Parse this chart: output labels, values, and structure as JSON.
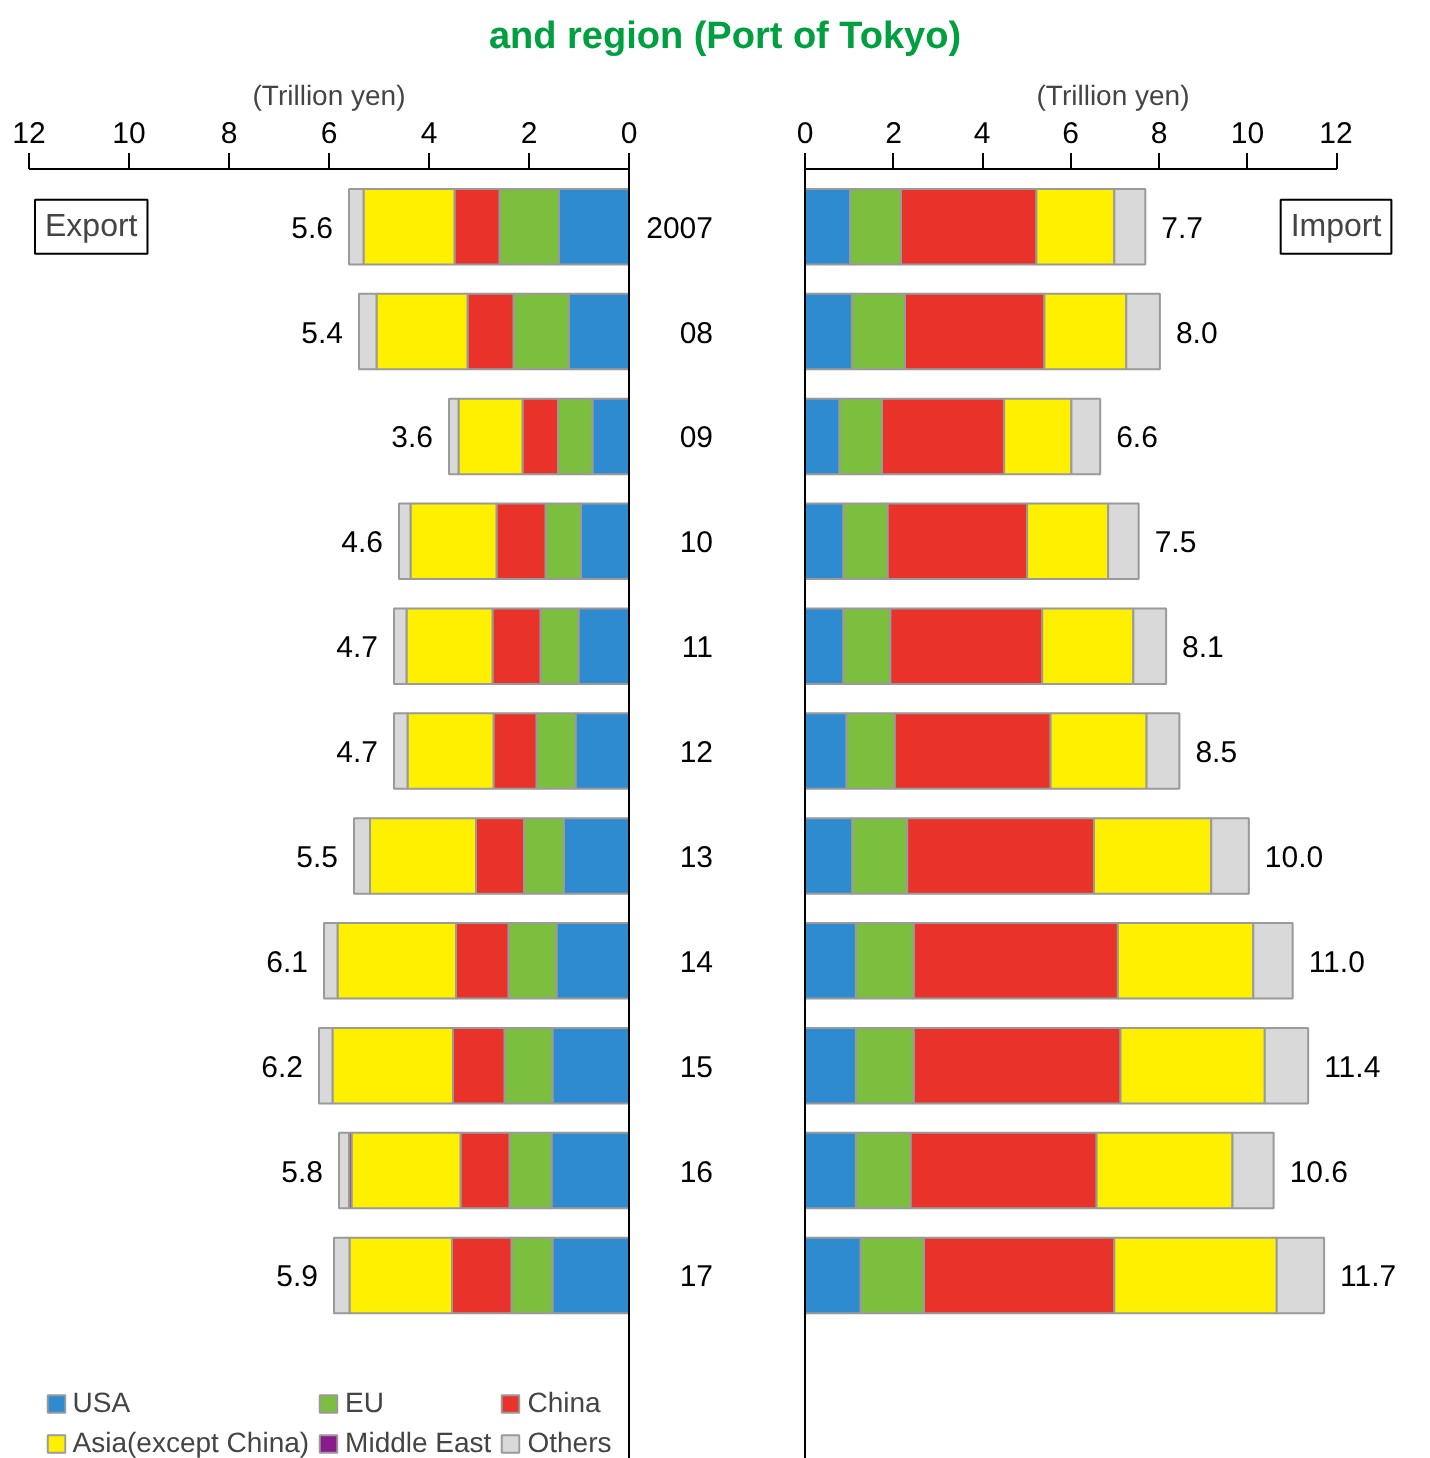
{
  "chart_data": [
    {
      "type": "bar",
      "orientation": "horizontal",
      "stacked": true,
      "title": "and region (Port of Tokyo)",
      "xlabel": "(Trillion yen)",
      "annotations": [
        "Export"
      ],
      "categories": [
        "2007",
        "08",
        "09",
        "10",
        "11",
        "12",
        "13",
        "14",
        "15",
        "16",
        "17"
      ],
      "xlim": [
        12,
        0
      ],
      "xticks": [
        0,
        2,
        4,
        6,
        8,
        10,
        12
      ],
      "tick_labels": "x",
      "legend": "bottom",
      "grid": false,
      "totals": [
        "5.6",
        "5.4",
        "3.6",
        "4.6",
        "4.7",
        "4.7",
        "5.5",
        "6.1",
        "6.2",
        "5.8",
        "5.9"
      ],
      "series": [
        {
          "name": "USA",
          "color": "#2e8bd0",
          "values": [
            1.4,
            1.2,
            0.73,
            0.96,
            1.01,
            1.07,
            1.3,
            1.45,
            1.53,
            1.55,
            1.53
          ]
        },
        {
          "name": "EU",
          "color": "#7cbf3f",
          "values": [
            1.19,
            1.11,
            0.69,
            0.71,
            0.76,
            0.78,
            0.8,
            0.96,
            0.96,
            0.84,
            0.82
          ]
        },
        {
          "name": "China",
          "color": "#e8322a",
          "values": [
            0.9,
            0.92,
            0.71,
            0.98,
            0.96,
            0.86,
            0.96,
            1.05,
            1.03,
            0.98,
            1.19
          ]
        },
        {
          "name": "Asia(except China)",
          "color": "#fff000",
          "values": [
            1.82,
            1.82,
            1.28,
            1.72,
            1.72,
            1.72,
            2.12,
            2.37,
            2.41,
            2.18,
            2.05
          ]
        },
        {
          "name": "Middle East",
          "color": "#8b1a8b",
          "values": [
            null,
            null,
            null,
            null,
            null,
            null,
            null,
            null,
            null,
            0.05,
            null
          ]
        },
        {
          "name": "Others",
          "color": "#d9d9d9",
          "values": [
            0.29,
            0.35,
            0.19,
            0.23,
            0.25,
            0.27,
            0.32,
            0.27,
            0.27,
            0.2,
            0.31
          ]
        }
      ]
    },
    {
      "type": "bar",
      "orientation": "horizontal",
      "stacked": true,
      "xlabel": "(Trillion yen)",
      "annotations": [
        "Import"
      ],
      "categories": [
        "2007",
        "08",
        "09",
        "10",
        "11",
        "12",
        "13",
        "14",
        "15",
        "16",
        "17"
      ],
      "xlim": [
        0,
        12
      ],
      "xticks": [
        0,
        2,
        4,
        6,
        8,
        10,
        12
      ],
      "grid": false,
      "totals": [
        "7.7",
        "8.0",
        "6.6",
        "7.5",
        "8.1",
        "8.5",
        "10.0",
        "11.0",
        "11.4",
        "10.6",
        "11.7"
      ],
      "series": [
        {
          "color": "#2e8bd0",
          "values": [
            1.02,
            1.06,
            0.78,
            0.87,
            0.87,
            0.94,
            1.07,
            1.15,
            1.15,
            1.15,
            1.26
          ]
        },
        {
          "color": "#7cbf3f",
          "values": [
            1.15,
            1.2,
            0.96,
            1.0,
            1.06,
            1.09,
            1.24,
            1.31,
            1.31,
            1.24,
            1.43
          ]
        },
        {
          "color": "#e8322a",
          "values": [
            3.06,
            3.15,
            2.76,
            3.15,
            3.43,
            3.52,
            4.22,
            4.61,
            4.67,
            4.2,
            4.3
          ]
        },
        {
          "color": "#fff000",
          "values": [
            1.76,
            1.85,
            1.52,
            1.83,
            2.06,
            2.17,
            2.65,
            3.06,
            3.26,
            3.07,
            3.67
          ]
        },
        {
          "color": "#d9d9d9",
          "values": [
            0.7,
            0.76,
            0.65,
            0.69,
            0.74,
            0.74,
            0.85,
            0.89,
            0.98,
            0.93,
            1.07
          ]
        }
      ]
    }
  ]
}
